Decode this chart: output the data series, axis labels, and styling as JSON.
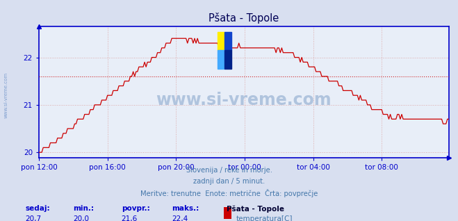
{
  "title": "Pšata - Topole",
  "bg_color": "#d8dff0",
  "plot_bg_color": "#e8eef8",
  "line_color": "#cc0000",
  "grid_color": "#ddaaaa",
  "axis_color": "#0000cc",
  "text_color": "#4477aa",
  "avg_line_color": "#cc0000",
  "avg_value": 21.6,
  "ylim": [
    19.88,
    22.65
  ],
  "yticks": [
    20,
    21,
    22
  ],
  "watermark_color": "#b0c4de",
  "watermark": "www.si-vreme.com",
  "watermark_left": "www.si-vreme.com",
  "subtitle_lines": [
    "Slovenija / reke in morje.",
    "zadnji dan / 5 minut.",
    "Meritve: trenutne  Enote: metrične  Črta: povprečje"
  ],
  "footer_labels": [
    "sedaj:",
    "min.:",
    "povpr.:",
    "maks.:"
  ],
  "footer_values": [
    "20,7",
    "20,0",
    "21,6",
    "22,4"
  ],
  "footer_series_name": "Pšata - Topole",
  "footer_series_label": "temperatura[C]",
  "footer_series_color": "#cc0000",
  "xtick_labels": [
    "pon 12:00",
    "pon 16:00",
    "pon 20:00",
    "tor 00:00",
    "tor 04:00",
    "tor 08:00"
  ],
  "xtick_positions": [
    0,
    48,
    96,
    144,
    192,
    240
  ],
  "total_points": 288,
  "logo_colors": [
    "#ffee00",
    "#1144cc",
    "#44aaff",
    "#002288"
  ]
}
